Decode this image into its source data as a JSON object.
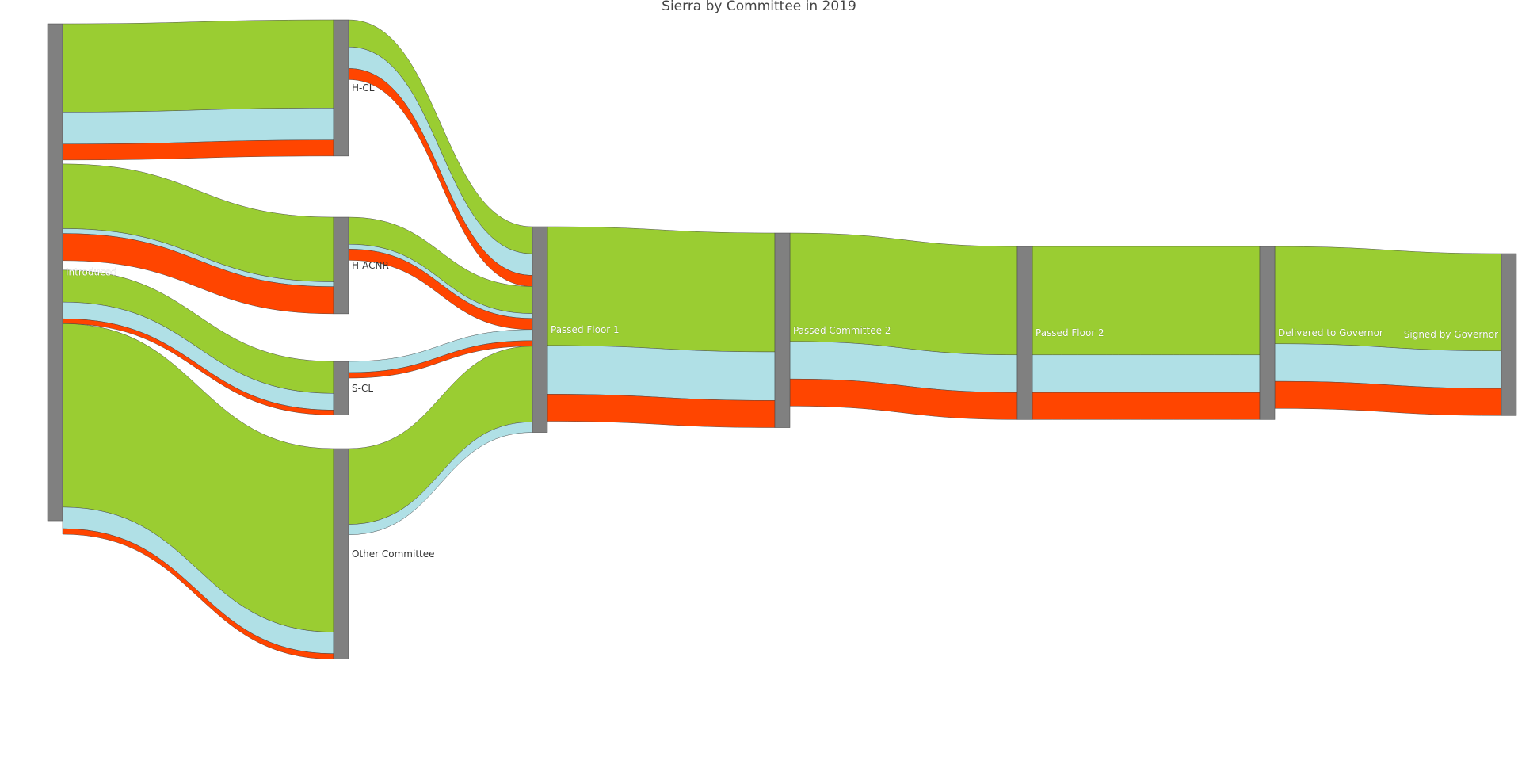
{
  "chart_data": {
    "type": "sankey",
    "title": "Sierra by Committee in 2019",
    "colors": {
      "passed": "#9acd32",
      "pending": "#b0e0e6",
      "failed": "#ff4500",
      "node": "#808080"
    },
    "nodes": [
      {
        "id": "introduced",
        "label": "Introduced",
        "column": 0
      },
      {
        "id": "h_cl",
        "label": "H-CL",
        "column": 1
      },
      {
        "id": "h_acnr",
        "label": "H-ACNR",
        "column": 1
      },
      {
        "id": "s_cl",
        "label": "S-CL",
        "column": 1
      },
      {
        "id": "other_committee",
        "label": "Other Committee",
        "column": 1
      },
      {
        "id": "passed_floor_1",
        "label": "Passed Floor 1",
        "column": 2
      },
      {
        "id": "passed_committee_2",
        "label": "Passed Committee 2",
        "column": 3
      },
      {
        "id": "passed_floor_2",
        "label": "Passed Floor 2",
        "column": 4
      },
      {
        "id": "delivered_to_governor",
        "label": "Delivered to Governor",
        "column": 5
      },
      {
        "id": "signed_by_governor",
        "label": "Signed by Governor",
        "column": 6
      }
    ],
    "links": [
      {
        "source": "introduced",
        "target": "h_cl",
        "color": "passed",
        "value": 127
      },
      {
        "source": "introduced",
        "target": "h_cl",
        "color": "pending",
        "value": 46
      },
      {
        "source": "introduced",
        "target": "h_cl",
        "color": "failed",
        "value": 23
      },
      {
        "source": "introduced",
        "target": "h_acnr",
        "color": "passed",
        "value": 93
      },
      {
        "source": "introduced",
        "target": "h_acnr",
        "color": "pending",
        "value": 7
      },
      {
        "source": "introduced",
        "target": "h_acnr",
        "color": "failed",
        "value": 39
      },
      {
        "source": "introduced",
        "target": "s_cl",
        "color": "passed",
        "value": 46
      },
      {
        "source": "introduced",
        "target": "s_cl",
        "color": "pending",
        "value": 24
      },
      {
        "source": "introduced",
        "target": "s_cl",
        "color": "failed",
        "value": 7
      },
      {
        "source": "introduced",
        "target": "other_committee",
        "color": "passed",
        "value": 264
      },
      {
        "source": "introduced",
        "target": "other_committee",
        "color": "pending",
        "value": 31
      },
      {
        "source": "introduced",
        "target": "other_committee",
        "color": "failed",
        "value": 8
      },
      {
        "source": "h_cl",
        "target": "passed_floor_1",
        "color": "passed",
        "value": 39
      },
      {
        "source": "h_cl",
        "target": "passed_floor_1",
        "color": "pending",
        "value": 31
      },
      {
        "source": "h_cl",
        "target": "passed_floor_1",
        "color": "failed",
        "value": 16
      },
      {
        "source": "h_acnr",
        "target": "passed_floor_1",
        "color": "passed",
        "value": 39
      },
      {
        "source": "h_acnr",
        "target": "passed_floor_1",
        "color": "pending",
        "value": 7
      },
      {
        "source": "h_acnr",
        "target": "passed_floor_1",
        "color": "failed",
        "value": 16
      },
      {
        "source": "s_cl",
        "target": "passed_floor_1",
        "color": "pending",
        "value": 16
      },
      {
        "source": "s_cl",
        "target": "passed_floor_1",
        "color": "failed",
        "value": 8
      },
      {
        "source": "other_committee",
        "target": "passed_floor_1",
        "color": "passed",
        "value": 109
      },
      {
        "source": "other_committee",
        "target": "passed_floor_1",
        "color": "pending",
        "value": 15
      },
      {
        "source": "passed_floor_1",
        "target": "passed_committee_2",
        "color": "passed",
        "value": 171
      },
      {
        "source": "passed_floor_1",
        "target": "passed_committee_2",
        "color": "pending",
        "value": 70
      },
      {
        "source": "passed_floor_1",
        "target": "passed_committee_2",
        "color": "failed",
        "value": 39
      },
      {
        "source": "passed_committee_2",
        "target": "passed_floor_2",
        "color": "passed",
        "value": 156
      },
      {
        "source": "passed_committee_2",
        "target": "passed_floor_2",
        "color": "pending",
        "value": 54
      },
      {
        "source": "passed_committee_2",
        "target": "passed_floor_2",
        "color": "failed",
        "value": 39
      },
      {
        "source": "passed_floor_2",
        "target": "delivered_to_governor",
        "color": "passed",
        "value": 156
      },
      {
        "source": "passed_floor_2",
        "target": "delivered_to_governor",
        "color": "pending",
        "value": 54
      },
      {
        "source": "passed_floor_2",
        "target": "delivered_to_governor",
        "color": "failed",
        "value": 39
      },
      {
        "source": "delivered_to_governor",
        "target": "signed_by_governor",
        "color": "passed",
        "value": 140
      },
      {
        "source": "delivered_to_governor",
        "target": "signed_by_governor",
        "color": "pending",
        "value": 54
      },
      {
        "source": "delivered_to_governor",
        "target": "signed_by_governor",
        "color": "failed",
        "value": 39
      }
    ]
  }
}
